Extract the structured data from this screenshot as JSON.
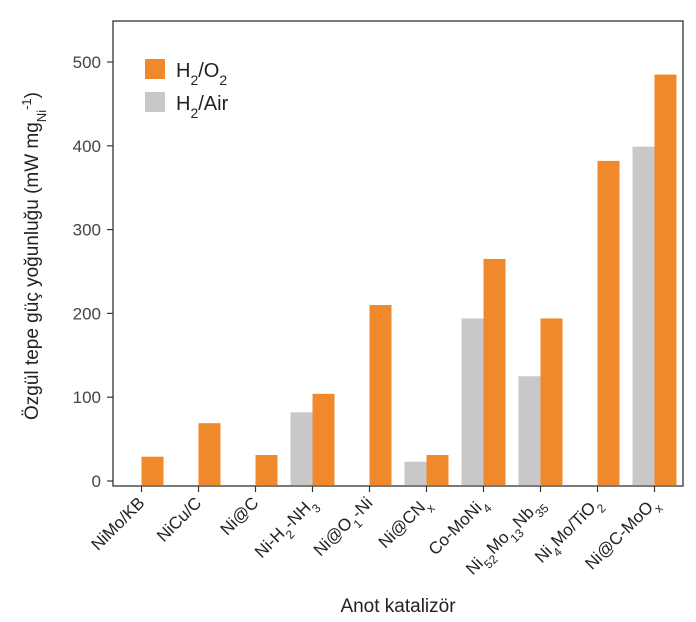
{
  "chart_data": {
    "type": "bar",
    "xlabel": "Anot katalizör",
    "ylabel_parts": {
      "main": "Özgül tepe güç yoğunluğu (mW mg",
      "sub": "Ni",
      "sup": "-1",
      "end": ")"
    },
    "ylim": [
      0,
      550
    ],
    "yticks": [
      0,
      100,
      200,
      300,
      400,
      500
    ],
    "grid": false,
    "legend_position": "top-left",
    "categories": [
      {
        "parts": [
          {
            "t": "NiMo/KB"
          }
        ]
      },
      {
        "parts": [
          {
            "t": "NiCu/C"
          }
        ]
      },
      {
        "parts": [
          {
            "t": "Ni@C"
          }
        ]
      },
      {
        "parts": [
          {
            "t": "Ni-H"
          },
          {
            "t": "2",
            "s": "sub"
          },
          {
            "t": "-NH"
          },
          {
            "t": "3",
            "s": "sub"
          }
        ]
      },
      {
        "parts": [
          {
            "t": "Ni@O"
          },
          {
            "t": "1",
            "s": "sub"
          },
          {
            "t": "-Ni"
          }
        ]
      },
      {
        "parts": [
          {
            "t": "Ni@CN"
          },
          {
            "t": "x",
            "s": "sub"
          }
        ]
      },
      {
        "parts": [
          {
            "t": "Co-MoNi"
          },
          {
            "t": "4",
            "s": "sub"
          }
        ]
      },
      {
        "parts": [
          {
            "t": "Ni"
          },
          {
            "t": "52",
            "s": "sub"
          },
          {
            "t": "Mo"
          },
          {
            "t": "13",
            "s": "sub"
          },
          {
            "t": "Nb"
          },
          {
            "t": "35",
            "s": "sub"
          }
        ]
      },
      {
        "parts": [
          {
            "t": "Ni"
          },
          {
            "t": "4",
            "s": "sub"
          },
          {
            "t": "Mo/TiO"
          },
          {
            "t": "2",
            "s": "sub"
          }
        ]
      },
      {
        "parts": [
          {
            "t": "Ni@C-MoO"
          },
          {
            "t": "x",
            "s": "sub"
          }
        ]
      }
    ],
    "series": [
      {
        "name_parts": [
          {
            "t": "H"
          },
          {
            "t": "2",
            "s": "sub"
          },
          {
            "t": "/Air"
          }
        ],
        "color": "#c8c8c8",
        "values": [
          null,
          null,
          null,
          82,
          null,
          23,
          194,
          125,
          null,
          399
        ]
      },
      {
        "name_parts": [
          {
            "t": "H"
          },
          {
            "t": "2",
            "s": "sub"
          },
          {
            "t": "/O"
          },
          {
            "t": "2",
            "s": "sub"
          }
        ],
        "color": "#f0892b",
        "values": [
          29,
          69,
          31,
          104,
          210,
          31,
          265,
          194,
          382,
          485
        ]
      }
    ],
    "legend_order": [
      1,
      0
    ]
  }
}
